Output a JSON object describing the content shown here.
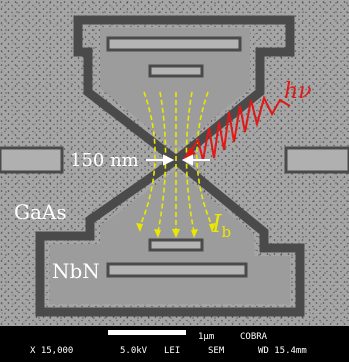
{
  "image": {
    "description_free": true,
    "colors": {
      "substrate": "#a3a3a3",
      "film": "#9a9a9a",
      "trench": "#505050",
      "arrows": "#e8e800",
      "photon": "#e01818",
      "label_white": "#ffffff",
      "databar": "#000000"
    }
  },
  "labels": {
    "gap_width": "150 nm",
    "substrate": "GaAs",
    "film": "NbN",
    "photon": "hν",
    "current_main": "I",
    "current_sub": "b"
  },
  "sem_bar": {
    "scale": "1μm",
    "detector": "COBRA",
    "magnification": "X 15,000",
    "voltage": "5.0kV",
    "mode": "LEI",
    "instrument": "SEM",
    "working_distance": "WD 15.4mm"
  }
}
